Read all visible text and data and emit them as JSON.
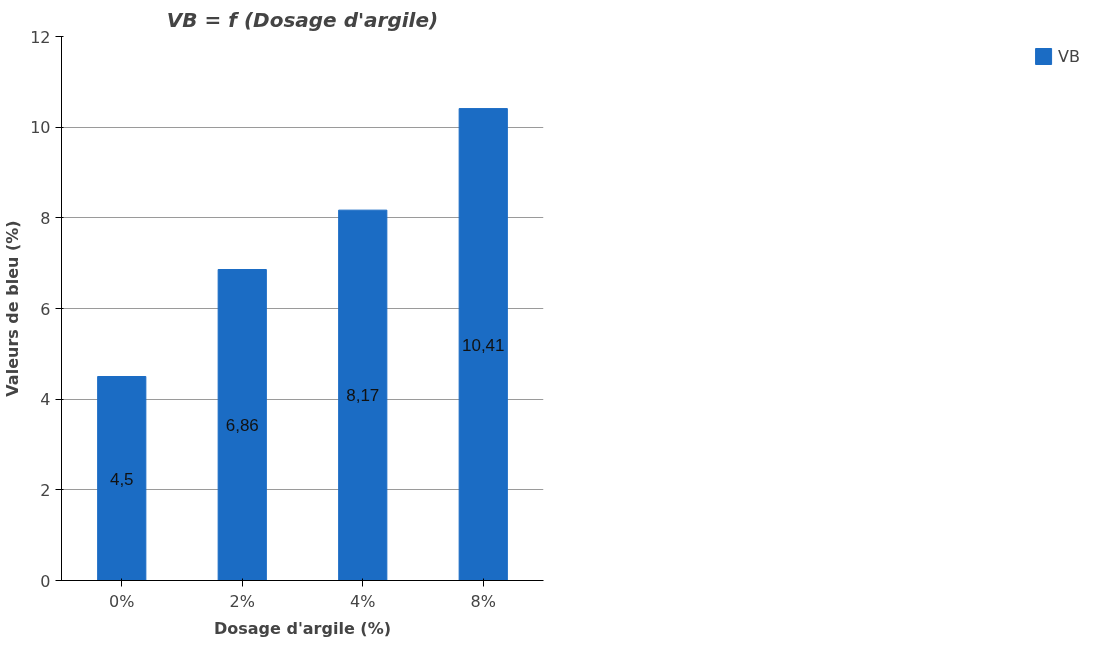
{
  "chart_data": {
    "type": "bar",
    "title": "VB = f (Dosage d'argile)",
    "xlabel": "Dosage d'argile (%)",
    "ylabel": "Valeurs de bleu (%)",
    "categories": [
      "0%",
      "2%",
      "4%",
      "8%"
    ],
    "series": [
      {
        "name": "VB",
        "color": "#1b6cc4",
        "values": [
          4.5,
          6.86,
          8.17,
          10.41
        ],
        "value_labels": [
          "4,5",
          "6,86",
          "8,17",
          "10,41"
        ]
      }
    ],
    "ylim": [
      0,
      12
    ],
    "yticks": [
      0,
      2,
      4,
      6,
      8,
      10,
      12
    ],
    "grid": "y",
    "legend": "right"
  }
}
